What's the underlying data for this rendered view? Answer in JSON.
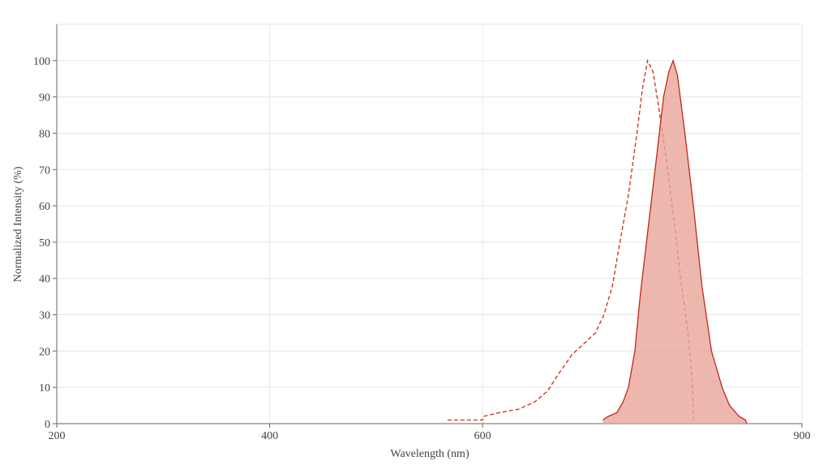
{
  "chart_data": {
    "type": "line",
    "x_label": "Wavelength (nm)",
    "y_label": "Normalized Intensity (%)",
    "xlim": [
      200,
      900
    ],
    "xticks": [
      200,
      400,
      600,
      900
    ],
    "ylim": [
      0,
      110
    ],
    "yticks": [
      0,
      10,
      20,
      30,
      40,
      50,
      60,
      70,
      80,
      90,
      100
    ],
    "grid": true,
    "series": [
      {
        "color": "#cc2a14",
        "dashed": true,
        "filled": false,
        "x": [
          567,
          600,
          601,
          615,
          634,
          649,
          661,
          672,
          684,
          695,
          706,
          714,
          722,
          729,
          737,
          745,
          750,
          755,
          760,
          765,
          771,
          779,
          786,
          793,
          796,
          798,
          798
        ],
        "values": [
          1,
          1,
          2,
          3,
          4,
          6,
          9,
          14,
          19,
          22,
          25,
          30,
          38,
          50,
          63,
          80,
          92,
          100,
          97,
          88,
          76,
          58,
          40,
          25,
          15,
          5,
          0
        ]
      },
      {
        "color": "#c0281a",
        "dashed": false,
        "filled": true,
        "fill_color": "#e9a59a",
        "x": [
          713,
          718,
          726,
          732,
          737,
          743,
          748,
          756,
          764,
          770,
          775,
          779,
          783,
          790,
          798,
          806,
          815,
          825,
          832,
          841,
          847,
          848
        ],
        "values": [
          1,
          2,
          3,
          6,
          10,
          20,
          35,
          55,
          75,
          90,
          97,
          100,
          96,
          80,
          60,
          38,
          20,
          10,
          5,
          2,
          1,
          0
        ]
      }
    ]
  }
}
